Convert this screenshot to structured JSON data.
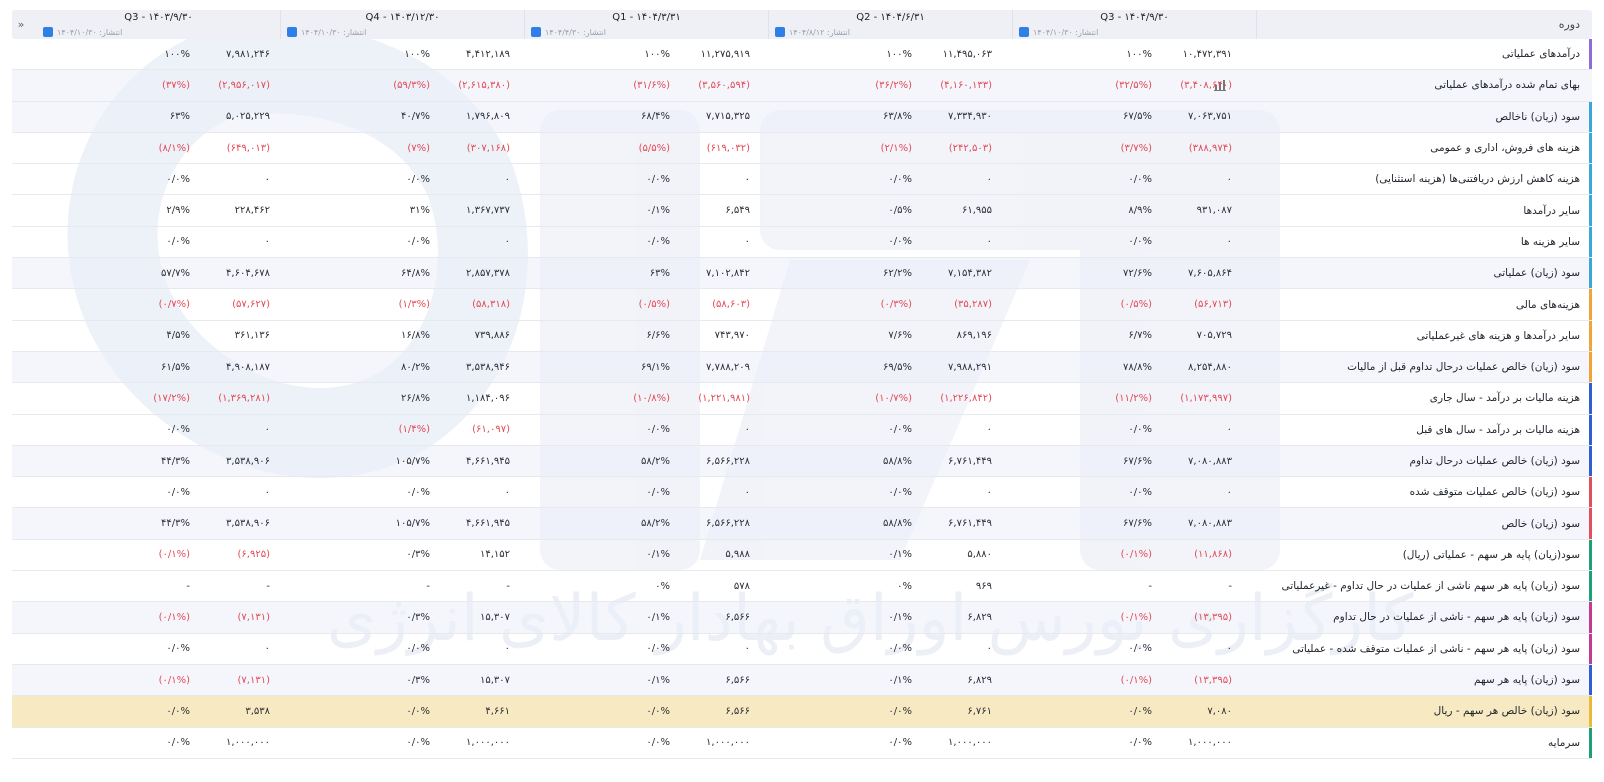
{
  "watermark_text": "کارگزاری بورس اوراق بهادار کالای انرژی",
  "header": {
    "label": "دوره",
    "collapse_icon": "»",
    "columns": [
      {
        "title": "Q3 - ۱۴۰۴/۹/۳۰",
        "published": "انتشار: ۱۴۰۴/۱۰/۳۰"
      },
      {
        "title": "Q2 - ۱۴۰۴/۶/۳۱",
        "published": "انتشار: ۱۴۰۴/۸/۱۲"
      },
      {
        "title": "Q1 - ۱۴۰۴/۳/۳۱",
        "published": "انتشار: ۱۴۰۴/۴/۳۰"
      },
      {
        "title": "Q4 - ۱۴۰۳/۱۲/۳۰",
        "published": "انتشار: ۱۴۰۴/۱۰/۳۰"
      },
      {
        "title": "Q3 - ۱۴۰۳/۹/۳۰",
        "published": "انتشار: ۱۴۰۴/۱۰/۳۰"
      }
    ]
  },
  "rows": [
    {
      "label": "درآمدهای عملیاتی",
      "marker": "#8e6cd8",
      "cells": [
        [
          "۱۰,۴۷۲,۳۹۱",
          "۱۰۰%"
        ],
        [
          "۱۱,۴۹۵,۰۶۳",
          "۱۰۰%"
        ],
        [
          "۱۱,۲۷۵,۹۱۹",
          "۱۰۰%"
        ],
        [
          "۴,۴۱۲,۱۸۹",
          "۱۰۰%"
        ],
        [
          "۷,۹۸۱,۲۴۶",
          "۱۰۰%"
        ]
      ]
    },
    {
      "label": "بهای تمام شده درآمدهای عملیاتی",
      "marker": "",
      "chart_icon": true,
      "cells": [
        [
          "(۳,۴۰۸,۶۴۰)",
          "(۳۲/۵%)"
        ],
        [
          "(۴,۱۶۰,۱۳۳)",
          "(۳۶/۲%)"
        ],
        [
          "(۳,۵۶۰,۵۹۴)",
          "(۳۱/۶%)"
        ],
        [
          "(۲,۶۱۵,۳۸۰)",
          "(۵۹/۳%)"
        ],
        [
          "(۲,۹۵۶,۰۱۷)",
          "(۳۷%)"
        ]
      ]
    },
    {
      "label": "سود (زیان) ناخالص",
      "marker": "#3ba7d9",
      "cells": [
        [
          "۷,۰۶۳,۷۵۱",
          "۶۷/۵%"
        ],
        [
          "۷,۳۳۴,۹۳۰",
          "۶۳/۸%"
        ],
        [
          "۷,۷۱۵,۳۲۵",
          "۶۸/۴%"
        ],
        [
          "۱,۷۹۶,۸۰۹",
          "۴۰/۷%"
        ],
        [
          "۵,۰۲۵,۲۲۹",
          "۶۳%"
        ]
      ]
    },
    {
      "label": "هزینه های فروش، اداری و عمومی",
      "marker": "#3ba7d9",
      "cells": [
        [
          "(۳۸۸,۹۷۴)",
          "(۳/۷%)"
        ],
        [
          "(۲۴۲,۵۰۳)",
          "(۲/۱%)"
        ],
        [
          "(۶۱۹,۰۳۲)",
          "(۵/۵%)"
        ],
        [
          "(۳۰۷,۱۶۸)",
          "(۷%)"
        ],
        [
          "(۶۴۹,۰۱۳)",
          "(۸/۱%)"
        ]
      ]
    },
    {
      "label": "هزینه کاهش ارزش دریافتنی‌ها (هزینه استثنایی)",
      "marker": "#3ba7d9",
      "cells": [
        [
          "۰",
          "۰/۰%"
        ],
        [
          "۰",
          "۰/۰%"
        ],
        [
          "۰",
          "۰/۰%"
        ],
        [
          "۰",
          "۰/۰%"
        ],
        [
          "۰",
          "۰/۰%"
        ]
      ]
    },
    {
      "label": "سایر درآمدها",
      "marker": "#3ba7d9",
      "cells": [
        [
          "۹۳۱,۰۸۷",
          "۸/۹%"
        ],
        [
          "۶۱,۹۵۵",
          "۰/۵%"
        ],
        [
          "۶,۵۴۹",
          "۰/۱%"
        ],
        [
          "۱,۳۶۷,۷۳۷",
          "۳۱%"
        ],
        [
          "۲۲۸,۴۶۲",
          "۲/۹%"
        ]
      ]
    },
    {
      "label": "سایر هزینه ها",
      "marker": "#3ba7d9",
      "cells": [
        [
          "۰",
          "۰/۰%"
        ],
        [
          "۰",
          "۰/۰%"
        ],
        [
          "۰",
          "۰/۰%"
        ],
        [
          "۰",
          "۰/۰%"
        ],
        [
          "۰",
          "۰/۰%"
        ]
      ]
    },
    {
      "label": "سود (زیان) عملیاتی",
      "marker": "#3ba7d9",
      "cells": [
        [
          "۷,۶۰۵,۸۶۴",
          "۷۲/۶%"
        ],
        [
          "۷,۱۵۴,۳۸۲",
          "۶۲/۲%"
        ],
        [
          "۷,۱۰۲,۸۴۲",
          "۶۳%"
        ],
        [
          "۲,۸۵۷,۳۷۸",
          "۶۴/۸%"
        ],
        [
          "۴,۶۰۴,۶۷۸",
          "۵۷/۷%"
        ]
      ]
    },
    {
      "label": "هزینه‌های مالی",
      "marker": "#f0a33a",
      "cells": [
        [
          "(۵۶,۷۱۳)",
          "(۰/۵%)"
        ],
        [
          "(۳۵,۲۸۷)",
          "(۰/۳%)"
        ],
        [
          "(۵۸,۶۰۳)",
          "(۰/۵%)"
        ],
        [
          "(۵۸,۳۱۸)",
          "(۱/۳%)"
        ],
        [
          "(۵۷,۶۲۷)",
          "(۰/۷%)"
        ]
      ]
    },
    {
      "label": "سایر درآمدها و هزینه های غیرعملیاتی",
      "marker": "#f0a33a",
      "cells": [
        [
          "۷۰۵,۷۲۹",
          "۶/۷%"
        ],
        [
          "۸۶۹,۱۹۶",
          "۷/۶%"
        ],
        [
          "۷۴۳,۹۷۰",
          "۶/۶%"
        ],
        [
          "۷۳۹,۸۸۶",
          "۱۶/۸%"
        ],
        [
          "۳۶۱,۱۳۶",
          "۴/۵%"
        ]
      ]
    },
    {
      "label": "سود (زیان) خالص عملیات درحال تداوم قبل از مالیات",
      "marker": "#f0a33a",
      "cells": [
        [
          "۸,۲۵۴,۸۸۰",
          "۷۸/۸%"
        ],
        [
          "۷,۹۸۸,۲۹۱",
          "۶۹/۵%"
        ],
        [
          "۷,۷۸۸,۲۰۹",
          "۶۹/۱%"
        ],
        [
          "۳,۵۳۸,۹۴۶",
          "۸۰/۲%"
        ],
        [
          "۴,۹۰۸,۱۸۷",
          "۶۱/۵%"
        ]
      ]
    },
    {
      "label": "هزینه مالیات بر درآمد - سال جاری",
      "marker": "#2f5fd0",
      "cells": [
        [
          "(۱,۱۷۳,۹۹۷)",
          "(۱۱/۲%)"
        ],
        [
          "(۱,۲۲۶,۸۴۲)",
          "(۱۰/۷%)"
        ],
        [
          "(۱,۲۲۱,۹۸۱)",
          "(۱۰/۸%)"
        ],
        [
          "۱,۱۸۴,۰۹۶",
          "۲۶/۸%"
        ],
        [
          "(۱,۳۶۹,۲۸۱)",
          "(۱۷/۲%)"
        ]
      ]
    },
    {
      "label": "هزینه مالیات بر درآمد - سال های قبل",
      "marker": "#2f5fd0",
      "cells": [
        [
          "۰",
          "۰/۰%"
        ],
        [
          "۰",
          "۰/۰%"
        ],
        [
          "۰",
          "۰/۰%"
        ],
        [
          "(۶۱,۰۹۷)",
          "(۱/۴%)"
        ],
        [
          "۰",
          "۰/۰%"
        ]
      ]
    },
    {
      "label": "سود (زیان) خالص عملیات درحال تداوم",
      "marker": "#2f5fd0",
      "cells": [
        [
          "۷,۰۸۰,۸۸۳",
          "۶۷/۶%"
        ],
        [
          "۶,۷۶۱,۴۴۹",
          "۵۸/۸%"
        ],
        [
          "۶,۵۶۶,۲۲۸",
          "۵۸/۲%"
        ],
        [
          "۴,۶۶۱,۹۴۵",
          "۱۰۵/۷%"
        ],
        [
          "۳,۵۳۸,۹۰۶",
          "۴۴/۳%"
        ]
      ]
    },
    {
      "label": "سود (زیان) خالص عملیات متوقف شده",
      "marker": "#e0505a",
      "cells": [
        [
          "۰",
          "۰/۰%"
        ],
        [
          "۰",
          "۰/۰%"
        ],
        [
          "۰",
          "۰/۰%"
        ],
        [
          "۰",
          "۰/۰%"
        ],
        [
          "۰",
          "۰/۰%"
        ]
      ]
    },
    {
      "label": "سود (زیان) خالص",
      "marker": "#e0505a",
      "cells": [
        [
          "۷,۰۸۰,۸۸۳",
          "۶۷/۶%"
        ],
        [
          "۶,۷۶۱,۴۴۹",
          "۵۸/۸%"
        ],
        [
          "۶,۵۶۶,۲۲۸",
          "۵۸/۲%"
        ],
        [
          "۴,۶۶۱,۹۴۵",
          "۱۰۵/۷%"
        ],
        [
          "۳,۵۳۸,۹۰۶",
          "۴۴/۳%"
        ]
      ]
    },
    {
      "label": "سود(زیان) پایه هر سهم - عملیاتی (ریال)",
      "marker": "#1f9e7a",
      "cells": [
        [
          "(۱۱,۸۶۸)",
          "(۰/۱%)"
        ],
        [
          "۵,۸۸۰",
          "۰/۱%"
        ],
        [
          "۵,۹۸۸",
          "۰/۱%"
        ],
        [
          "۱۴,۱۵۲",
          "۰/۳%"
        ],
        [
          "(۶,۹۲۵)",
          "(۰/۱%)"
        ]
      ]
    },
    {
      "label": "سود (زیان) پایه هر سهم ناشی از عملیات در حال تداوم - غیرعملیاتی",
      "marker": "#1f9e7a",
      "cells": [
        [
          "-",
          "-"
        ],
        [
          "۹۶۹",
          "۰%"
        ],
        [
          "۵۷۸",
          "۰%"
        ],
        [
          "-",
          "-"
        ],
        [
          "-",
          "-"
        ]
      ]
    },
    {
      "label": "سود (زیان) پایه هر سهم - ناشی از عملیات در حال تداوم",
      "marker": "#c23b8f",
      "cells": [
        [
          "(۱۳,۳۹۵)",
          "(۰/۱%)"
        ],
        [
          "۶,۸۲۹",
          "۰/۱%"
        ],
        [
          "۶,۵۶۶",
          "۰/۱%"
        ],
        [
          "۱۵,۳۰۷",
          "۰/۳%"
        ],
        [
          "(۷,۱۳۱)",
          "(۰/۱%)"
        ]
      ]
    },
    {
      "label": "سود (زیان) پایه هر سهم - ناشی از عملیات متوقف شده - عملیاتی",
      "marker": "#c23b8f",
      "cells": [
        [
          "۰",
          "۰/۰%"
        ],
        [
          "۰",
          "۰/۰%"
        ],
        [
          "۰",
          "۰/۰%"
        ],
        [
          "۰",
          "۰/۰%"
        ],
        [
          "۰",
          "۰/۰%"
        ]
      ]
    },
    {
      "label": "سود (زیان) پایه هر سهم",
      "marker": "#2f5fd0",
      "cells": [
        [
          "(۱۳,۳۹۵)",
          "(۰/۱%)"
        ],
        [
          "۶,۸۲۹",
          "۰/۱%"
        ],
        [
          "۶,۵۶۶",
          "۰/۱%"
        ],
        [
          "۱۵,۳۰۷",
          "۰/۳%"
        ],
        [
          "(۷,۱۳۱)",
          "(۰/۱%)"
        ]
      ]
    },
    {
      "label": "سود (زیان) خالص هر سهم - ریال",
      "marker": "#e8b93a",
      "highlight": true,
      "cells": [
        [
          "۷,۰۸۰",
          "۰/۰%"
        ],
        [
          "۶,۷۶۱",
          "۰/۰%"
        ],
        [
          "۶,۵۶۶",
          "۰/۰%"
        ],
        [
          "۴,۶۶۱",
          "۰/۰%"
        ],
        [
          "۳,۵۳۸",
          "۰/۰%"
        ]
      ]
    },
    {
      "label": "سرمایه",
      "marker": "#1f9e7a",
      "cells": [
        [
          "۱,۰۰۰,۰۰۰",
          "۰/۰%"
        ],
        [
          "۱,۰۰۰,۰۰۰",
          "۰/۰%"
        ],
        [
          "۱,۰۰۰,۰۰۰",
          "۰/۰%"
        ],
        [
          "۱,۰۰۰,۰۰۰",
          "۰/۰%"
        ],
        [
          "۱,۰۰۰,۰۰۰",
          "۰/۰%"
        ]
      ]
    }
  ]
}
